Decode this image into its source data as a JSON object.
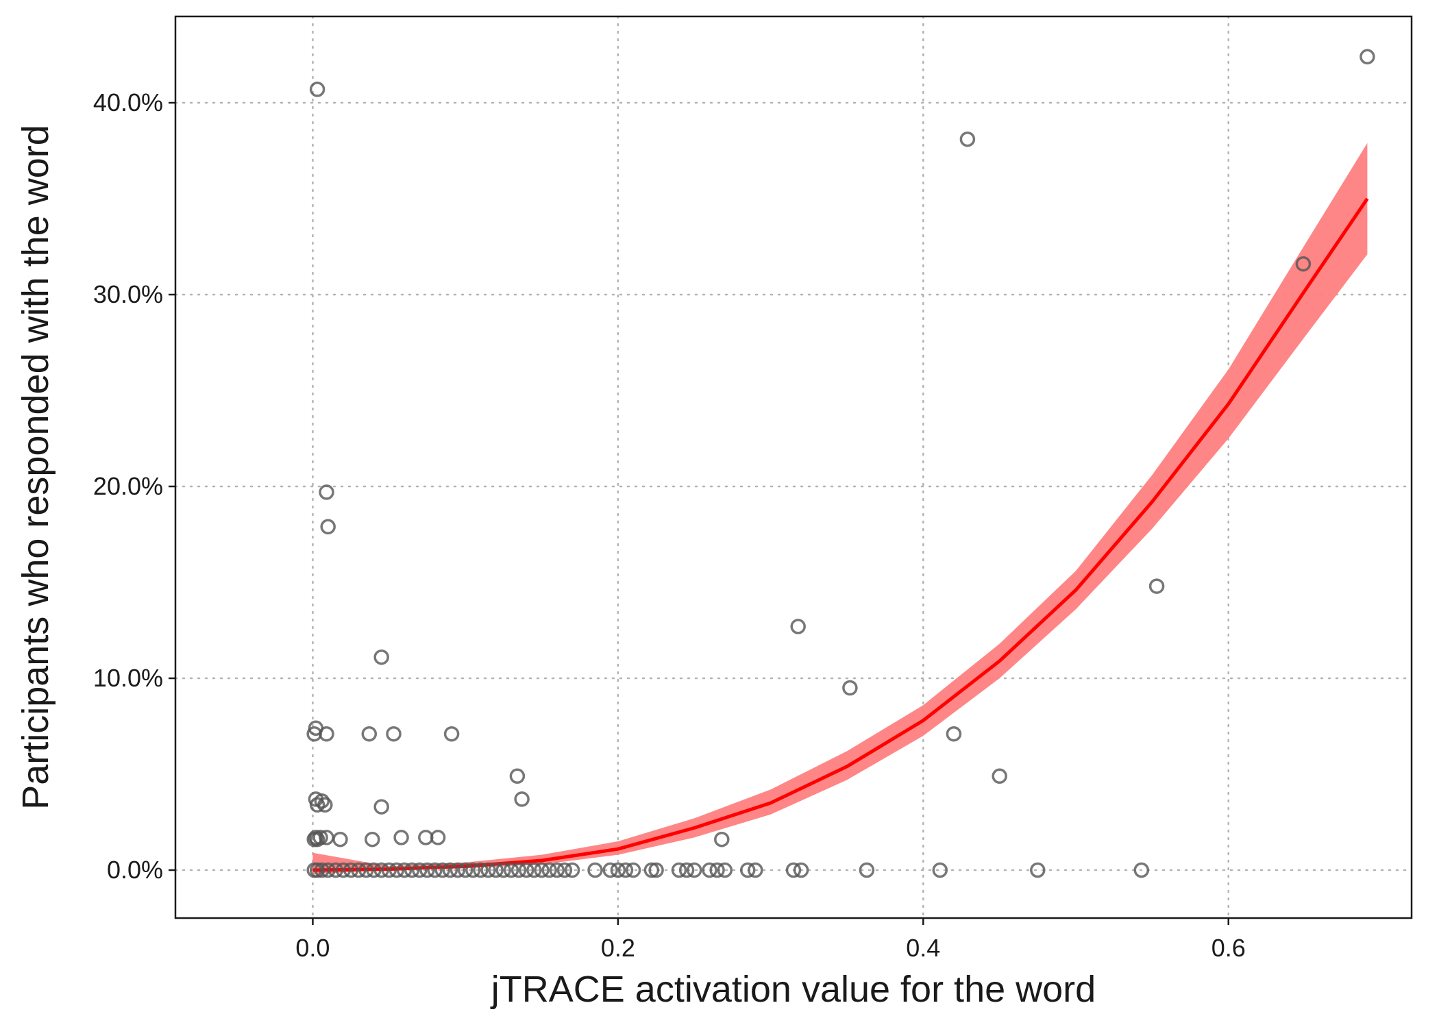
{
  "chart_data": {
    "type": "scatter",
    "title": "",
    "xlabel": "jTRACE activation value for the word",
    "ylabel": "Participants who responded with the word",
    "xlim": [
      -0.09,
      0.72
    ],
    "ylim": [
      -2.5,
      44.5
    ],
    "x_ticks": [
      0.0,
      0.2,
      0.4,
      0.6
    ],
    "x_tick_labels": [
      "0.0",
      "0.2",
      "0.4",
      "0.6"
    ],
    "y_ticks": [
      0,
      10,
      20,
      30,
      40
    ],
    "y_tick_labels": [
      "0.0%",
      "10.0%",
      "20.0%",
      "30.0%",
      "40.0%"
    ],
    "grid": "dotted major gridlines",
    "colors": {
      "points": "#555555",
      "fit_line": "#ff0000",
      "ci_band": "#ff7f7f"
    },
    "series": [
      {
        "kind": "points",
        "x": [
          0.003,
          0.009,
          0.01,
          0.002,
          0.001,
          0.009,
          0.045,
          0.037,
          0.053,
          0.091,
          0.134,
          0.137,
          0.318,
          0.352,
          0.002,
          0.003,
          0.006,
          0.008,
          0.002,
          0.001,
          0.003,
          0.005,
          0.009,
          0.018,
          0.045,
          0.039,
          0.058,
          0.074,
          0.082,
          0.268,
          0.429,
          0.42,
          0.45,
          0.553,
          0.649,
          0.691,
          0.001,
          0.003,
          0.006,
          0.01,
          0.015,
          0.02,
          0.025,
          0.03,
          0.035,
          0.04,
          0.045,
          0.05,
          0.055,
          0.06,
          0.065,
          0.07,
          0.075,
          0.08,
          0.085,
          0.09,
          0.095,
          0.1,
          0.105,
          0.11,
          0.115,
          0.12,
          0.125,
          0.13,
          0.135,
          0.14,
          0.145,
          0.15,
          0.155,
          0.16,
          0.165,
          0.17,
          0.185,
          0.195,
          0.2,
          0.205,
          0.21,
          0.222,
          0.225,
          0.24,
          0.245,
          0.25,
          0.26,
          0.265,
          0.27,
          0.285,
          0.29,
          0.315,
          0.32,
          0.363,
          0.411,
          0.475,
          0.543
        ],
        "y": [
          40.7,
          19.7,
          17.9,
          7.4,
          7.1,
          7.1,
          11.1,
          7.1,
          7.1,
          7.1,
          4.9,
          3.7,
          12.7,
          9.5,
          3.7,
          3.4,
          3.6,
          3.4,
          1.7,
          1.6,
          1.6,
          1.7,
          1.7,
          1.6,
          3.3,
          1.6,
          1.7,
          1.7,
          1.7,
          1.6,
          38.1,
          7.1,
          4.9,
          14.8,
          31.6,
          42.4,
          0,
          0,
          0,
          0,
          0,
          0,
          0,
          0,
          0,
          0,
          0,
          0,
          0,
          0,
          0,
          0,
          0,
          0,
          0,
          0,
          0,
          0,
          0,
          0,
          0,
          0,
          0,
          0,
          0,
          0,
          0,
          0,
          0,
          0,
          0,
          0,
          0,
          0,
          0,
          0,
          0,
          0,
          0,
          0,
          0,
          0,
          0,
          0,
          0,
          0,
          0,
          0,
          0,
          0,
          0,
          0,
          0
        ]
      },
      {
        "kind": "fit_line",
        "x": [
          0.0,
          0.05,
          0.1,
          0.15,
          0.2,
          0.25,
          0.3,
          0.35,
          0.4,
          0.45,
          0.5,
          0.55,
          0.6,
          0.65,
          0.691
        ],
        "y": [
          0.0,
          0.05,
          0.2,
          0.5,
          1.1,
          2.2,
          3.5,
          5.4,
          7.8,
          10.9,
          14.6,
          19.2,
          24.3,
          30.2,
          35.0
        ]
      },
      {
        "kind": "confidence_band",
        "x": [
          0.0,
          0.05,
          0.1,
          0.15,
          0.2,
          0.25,
          0.3,
          0.35,
          0.4,
          0.45,
          0.5,
          0.55,
          0.6,
          0.65,
          0.691
        ],
        "lower": [
          -0.2,
          0.0,
          0.1,
          0.3,
          0.8,
          1.7,
          2.9,
          4.7,
          7.0,
          10.0,
          13.6,
          17.8,
          22.5,
          27.8,
          32.1
        ],
        "upper": [
          0.9,
          0.2,
          0.4,
          0.8,
          1.5,
          2.7,
          4.2,
          6.2,
          8.6,
          11.8,
          15.6,
          20.6,
          26.1,
          32.6,
          37.9
        ]
      }
    ]
  }
}
